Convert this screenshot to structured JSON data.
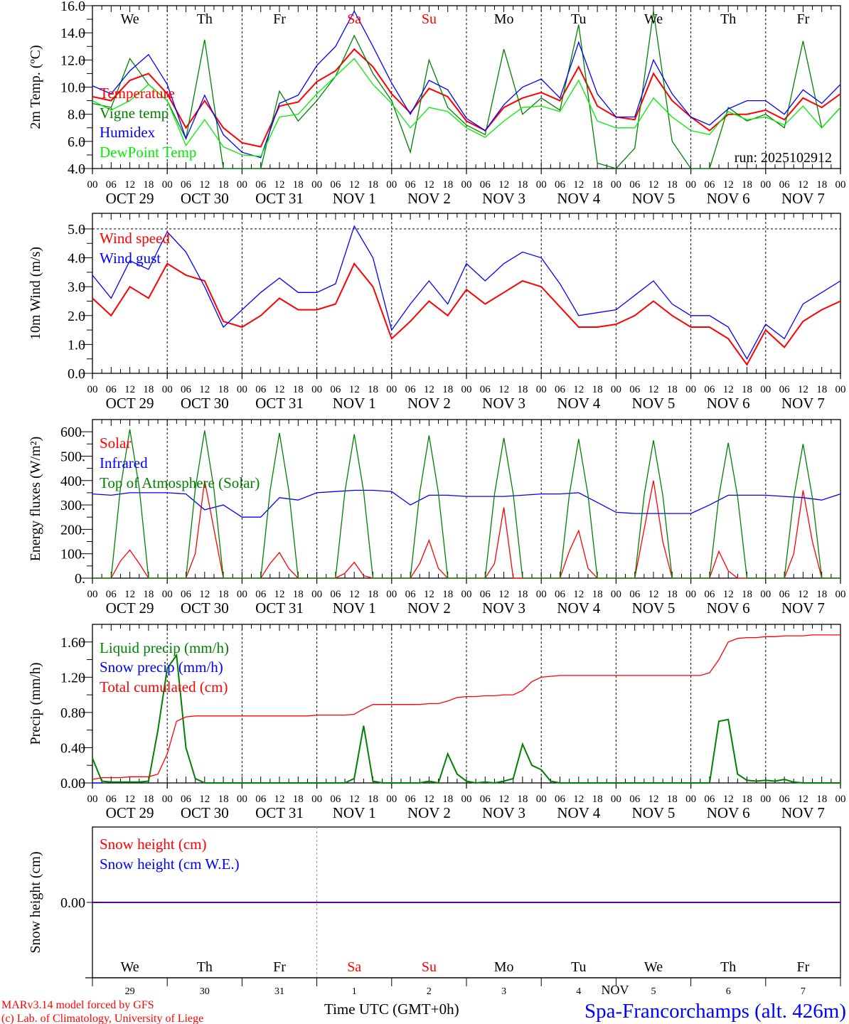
{
  "weekdays": [
    "We",
    "Th",
    "Fr",
    "Sa",
    "Su",
    "Mo",
    "Tu",
    "We",
    "Th",
    "Fr"
  ],
  "weekend_indices": [
    3,
    4
  ],
  "date_labels": [
    "OCT 29",
    "OCT 30",
    "OCT 31",
    "NOV  1",
    "NOV  2",
    "NOV  3",
    "NOV  4",
    "NOV  5",
    "NOV  6",
    "NOV  7"
  ],
  "day_numbers": [
    "29",
    "30",
    "31",
    "1",
    "2",
    "3",
    "4",
    "5",
    "6",
    "7"
  ],
  "hour_ticks": [
    "00",
    "06",
    "12",
    "18"
  ],
  "colors": {
    "red": "#ff0000",
    "blue": "#0000ff",
    "darkgreen": "#008000",
    "lightgreen": "#00ee00",
    "black": "#000000"
  },
  "footer": {
    "model": "MARv3.14 model forced by GFS",
    "copyright": "(c) Lab. of Climatology, University of Liege",
    "time_label": "Time UTC (GMT+0h)",
    "month_label": "NOV",
    "station": "Spa-Francorchamps (alt. 426m)"
  },
  "chart_data": [
    {
      "type": "line",
      "ylabel": "2m Temp. (ºC)",
      "ylim": [
        4,
        16
      ],
      "yticks": [
        "4.0",
        "6.0",
        "8.0",
        "10.0",
        "12.0",
        "14.0",
        "16.0"
      ],
      "annotation": "run: 2025102912",
      "x_start": "2025-10-29 00 UTC",
      "step_hours": 6,
      "series": [
        {
          "name": "Temperature",
          "color": "#ff0000",
          "values": [
            9.3,
            9.0,
            10.5,
            11.0,
            9.5,
            7.0,
            9.0,
            7.0,
            5.9,
            5.6,
            8.6,
            8.9,
            10.4,
            11.2,
            12.8,
            11.5,
            9.5,
            8.1,
            9.9,
            9.3,
            7.5,
            6.8,
            8.5,
            9.2,
            9.6,
            9.0,
            11.5,
            8.6,
            7.8,
            7.6,
            11.0,
            9.0,
            7.8,
            6.8,
            8.0,
            8.0,
            8.3,
            7.6,
            9.2,
            8.5,
            9.5
          ]
        },
        {
          "name": "Vigne temp",
          "color": "#008000",
          "values": [
            8.8,
            8.5,
            12.1,
            10.2,
            9.0,
            6.2,
            13.5,
            4.0,
            4.0,
            4.0,
            9.7,
            7.5,
            9.0,
            10.8,
            13.8,
            11.0,
            9.0,
            5.2,
            12.0,
            8.5,
            7.2,
            6.5,
            12.8,
            8.0,
            9.2,
            8.3,
            14.6,
            4.4,
            4.0,
            5.5,
            15.6,
            6.0,
            4.0,
            4.0,
            8.5,
            7.5,
            8.0,
            7.0,
            13.4,
            7.0,
            8.5
          ]
        },
        {
          "name": "Humidex",
          "color": "#0000ff",
          "values": [
            10.1,
            9.5,
            11.2,
            12.4,
            10.2,
            6.2,
            9.4,
            6.5,
            5.2,
            4.8,
            8.8,
            9.4,
            11.6,
            13.0,
            15.6,
            13.0,
            10.3,
            8.0,
            10.5,
            9.8,
            7.7,
            6.8,
            8.7,
            10.0,
            10.6,
            9.2,
            13.3,
            9.5,
            7.8,
            7.8,
            12.0,
            9.5,
            7.8,
            7.2,
            8.4,
            9.0,
            9.0,
            8.0,
            9.8,
            8.8,
            10.2
          ]
        },
        {
          "name": "DewPoint Temp",
          "color": "#00ee00",
          "values": [
            9.0,
            8.3,
            9.0,
            10.2,
            9.0,
            5.7,
            7.6,
            5.6,
            5.0,
            4.9,
            7.8,
            8.0,
            9.5,
            10.8,
            12.1,
            10.2,
            8.8,
            7.0,
            8.5,
            8.2,
            7.0,
            6.3,
            7.5,
            8.5,
            8.6,
            8.2,
            10.5,
            7.5,
            7.0,
            7.0,
            9.2,
            7.8,
            6.8,
            6.5,
            8.2,
            7.6,
            7.8,
            7.2,
            8.6,
            7.0,
            8.5
          ]
        }
      ]
    },
    {
      "type": "line",
      "ylabel": "10m Wind (m/s)",
      "ylim": [
        0,
        5.54
      ],
      "yticks": [
        "0.0",
        "1.0",
        "2.0",
        "3.0",
        "4.0",
        "5.0"
      ],
      "reference_line": 5.0,
      "x_start": "2025-10-29 00 UTC",
      "step_hours": 6,
      "series": [
        {
          "name": "Wind speed",
          "color": "#ff0000",
          "values": [
            2.6,
            2.0,
            3.0,
            2.6,
            3.8,
            3.4,
            3.2,
            1.8,
            1.6,
            2.0,
            2.6,
            2.2,
            2.2,
            2.4,
            3.8,
            3.0,
            1.2,
            1.8,
            2.5,
            2.0,
            2.9,
            2.4,
            2.8,
            3.2,
            3.0,
            2.3,
            1.6,
            1.6,
            1.7,
            2.0,
            2.5,
            2.0,
            1.6,
            1.6,
            1.2,
            0.3,
            1.5,
            0.9,
            1.8,
            2.2,
            2.5
          ]
        },
        {
          "name": "Wind gust",
          "color": "#0000ff",
          "values": [
            3.4,
            2.6,
            3.9,
            3.6,
            4.9,
            4.2,
            3.0,
            1.6,
            2.2,
            2.8,
            3.3,
            2.8,
            2.8,
            3.1,
            5.1,
            4.0,
            1.5,
            2.4,
            3.2,
            2.4,
            3.8,
            3.2,
            3.8,
            4.2,
            4.0,
            3.1,
            2.0,
            2.1,
            2.2,
            2.7,
            3.2,
            2.4,
            2.0,
            2.0,
            1.6,
            0.5,
            1.7,
            1.2,
            2.4,
            2.8,
            3.2
          ]
        }
      ]
    },
    {
      "type": "line",
      "ylabel": "Energy fluxes (W/m²)",
      "ylim": [
        0,
        650
      ],
      "yticks": [
        "0.",
        "100.",
        "200.",
        "300.",
        "400.",
        "500.",
        "600."
      ],
      "x_start": "2025-10-29 00 UTC",
      "series": [
        {
          "name": "Solar",
          "color": "#ff0000",
          "step_hours": 3,
          "values": [
            0,
            0,
            0,
            70,
            115,
            60,
            0,
            0,
            0,
            0,
            0,
            100,
            400,
            200,
            0,
            0,
            0,
            0,
            0,
            60,
            105,
            40,
            0,
            0,
            0,
            0,
            0,
            20,
            65,
            10,
            0,
            0,
            0,
            0,
            0,
            60,
            155,
            40,
            0,
            0,
            0,
            0,
            0,
            60,
            290,
            0,
            0,
            0,
            0,
            0,
            0,
            110,
            195,
            40,
            0,
            0,
            0,
            0,
            0,
            200,
            400,
            150,
            0,
            0,
            0,
            0,
            0,
            110,
            30,
            0,
            0,
            0,
            0,
            0,
            0,
            100,
            360,
            150,
            0,
            0,
            0
          ]
        },
        {
          "name": "Infrared",
          "color": "#0000ff",
          "step_hours": 6,
          "values": [
            345,
            340,
            350,
            350,
            350,
            345,
            280,
            300,
            250,
            250,
            330,
            320,
            350,
            355,
            360,
            360,
            355,
            300,
            340,
            340,
            335,
            335,
            335,
            340,
            345,
            345,
            350,
            310,
            270,
            265,
            265,
            265,
            265,
            300,
            340,
            340,
            340,
            335,
            330,
            320,
            345
          ]
        },
        {
          "name": "Top of Atmosphere (Solar)",
          "color": "#008000",
          "step_hours": 3,
          "values": [
            0,
            0,
            0,
            370,
            610,
            370,
            0,
            0,
            0,
            0,
            0,
            365,
            605,
            365,
            0,
            0,
            0,
            0,
            0,
            360,
            595,
            360,
            0,
            0,
            0,
            0,
            0,
            355,
            590,
            355,
            0,
            0,
            0,
            0,
            0,
            350,
            585,
            350,
            0,
            0,
            0,
            0,
            0,
            345,
            575,
            345,
            0,
            0,
            0,
            0,
            0,
            340,
            570,
            340,
            0,
            0,
            0,
            0,
            0,
            340,
            565,
            340,
            0,
            0,
            0,
            0,
            0,
            335,
            555,
            335,
            0,
            0,
            0,
            0,
            0,
            330,
            550,
            330,
            0,
            0,
            0
          ]
        }
      ]
    },
    {
      "type": "line",
      "ylabel": "Precip (mm/h)",
      "ylim": [
        0,
        1.8
      ],
      "yticks": [
        "0.00",
        "0.40",
        "0.80",
        "1.20",
        "1.60"
      ],
      "x_start": "2025-10-29 00 UTC",
      "step_hours": 3,
      "series": [
        {
          "name": "Liquid precip (mm/h)",
          "color": "#008000",
          "values": [
            0.28,
            0.02,
            0.01,
            0.01,
            0.01,
            0.01,
            0.02,
            0.6,
            1.3,
            1.45,
            0.4,
            0.05,
            0,
            0,
            0,
            0,
            0,
            0,
            0,
            0,
            0,
            0,
            0,
            0,
            0,
            0,
            0,
            0,
            0.05,
            0.65,
            0.02,
            0,
            0,
            0,
            0,
            0,
            0.02,
            0,
            0.33,
            0.1,
            0.02,
            0,
            0.01,
            0,
            0.02,
            0.05,
            0.44,
            0.2,
            0.15,
            0.02,
            0,
            0,
            0,
            0,
            0,
            0,
            0,
            0,
            0,
            0,
            0,
            0,
            0,
            0,
            0,
            0,
            0,
            0.7,
            0.72,
            0.1,
            0.03,
            0.02,
            0.03,
            0.02,
            0.04,
            0.01,
            0,
            0,
            0,
            0,
            0
          ]
        },
        {
          "name": "Snow precip (mm/h)",
          "color": "#0000ff",
          "values": [
            0,
            0
          ]
        },
        {
          "name": "Total cumulated (cm)",
          "color": "#ff0000",
          "values": [
            0.04,
            0.06,
            0.06,
            0.06,
            0.07,
            0.07,
            0.07,
            0.1,
            0.33,
            0.7,
            0.75,
            0.76,
            0.76,
            0.76,
            0.76,
            0.76,
            0.76,
            0.76,
            0.76,
            0.76,
            0.76,
            0.76,
            0.76,
            0.76,
            0.77,
            0.77,
            0.77,
            0.77,
            0.78,
            0.84,
            0.89,
            0.89,
            0.89,
            0.89,
            0.89,
            0.89,
            0.9,
            0.9,
            0.93,
            0.97,
            0.98,
            0.98,
            0.99,
            0.99,
            1.0,
            1.0,
            1.05,
            1.15,
            1.2,
            1.21,
            1.22,
            1.22,
            1.22,
            1.22,
            1.22,
            1.22,
            1.22,
            1.22,
            1.22,
            1.22,
            1.22,
            1.22,
            1.22,
            1.22,
            1.22,
            1.22,
            1.25,
            1.4,
            1.6,
            1.64,
            1.65,
            1.65,
            1.66,
            1.66,
            1.67,
            1.67,
            1.67,
            1.68,
            1.68,
            1.68,
            1.68
          ]
        }
      ]
    },
    {
      "type": "line",
      "ylabel": "Snow height (cm)",
      "ylim": [
        -1,
        1
      ],
      "yticks": [
        "0.00"
      ],
      "x_start": "2025-10-29 00 UTC",
      "step_hours": 240,
      "series": [
        {
          "name": "Snow height (cm)",
          "color": "#ff0000",
          "values": [
            0,
            0
          ]
        },
        {
          "name": "Snow height (cm W.E.)",
          "color": "#0000ff",
          "values": [
            0,
            0
          ]
        }
      ]
    }
  ]
}
